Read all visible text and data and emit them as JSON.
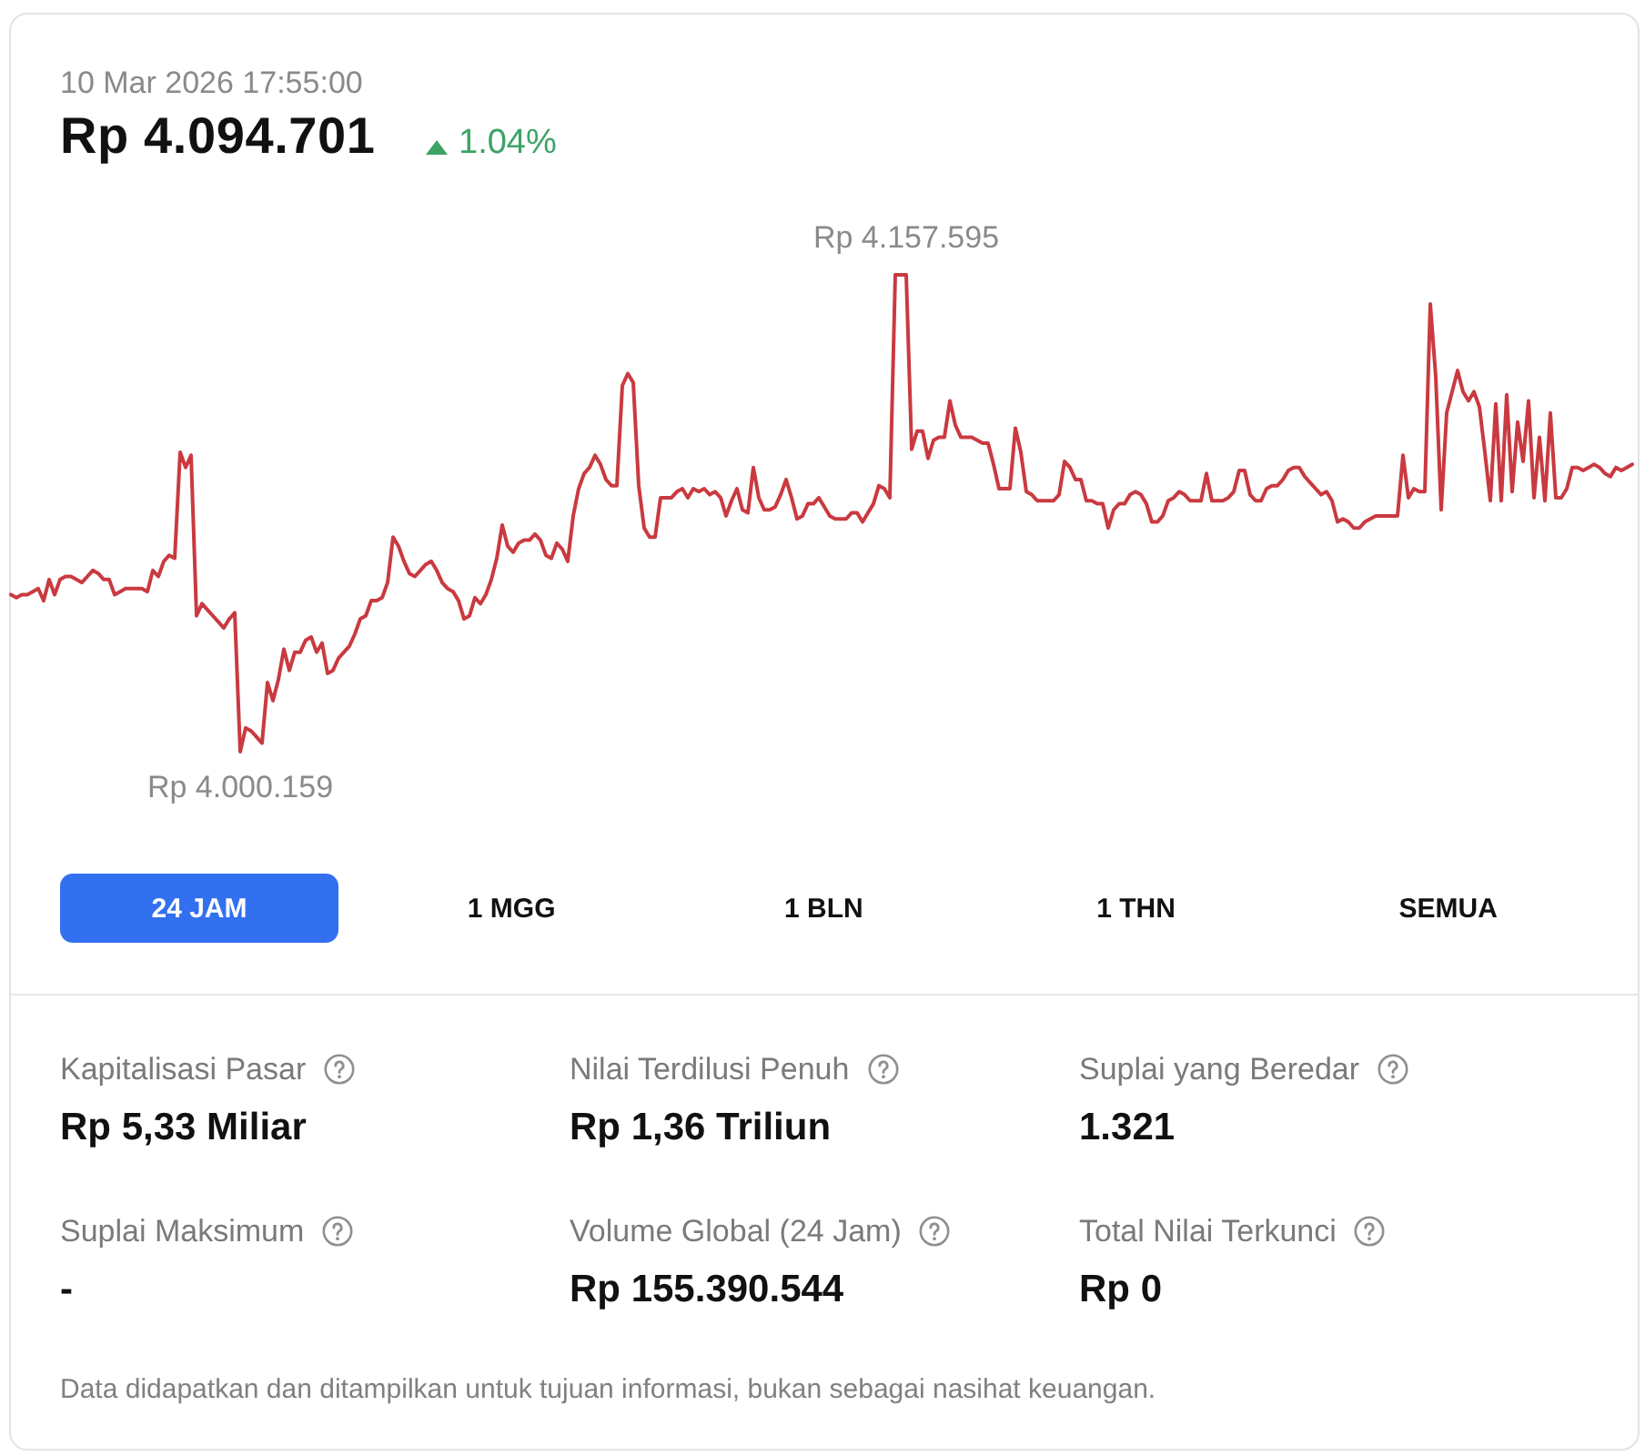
{
  "chart_data": [
    {
      "type": "line",
      "subtitle": "10 Mar 2026 17:55:00",
      "title": "Rp 4.094.701",
      "annotations": [
        "1.04%",
        "24 JAM",
        "1 MGG",
        "1 BLN",
        "1 THN",
        "SEMUA"
      ],
      "categories": [
        null,
        null,
        null,
        null,
        null,
        null,
        null,
        null,
        null,
        null,
        null,
        null,
        null,
        null,
        null,
        null,
        null,
        null,
        null,
        null,
        null,
        null,
        null,
        null,
        null,
        null,
        null,
        null,
        null,
        null,
        null,
        null,
        null,
        null,
        null,
        null,
        null,
        null,
        null,
        null,
        null,
        null,
        null,
        null,
        null,
        null,
        null,
        null,
        null,
        null,
        null,
        null,
        null,
        null,
        null,
        null,
        null,
        null,
        null,
        null,
        null,
        null,
        null,
        null,
        null,
        null,
        null,
        null,
        null,
        null,
        null,
        null,
        null,
        null,
        null,
        null,
        null,
        null,
        null,
        null,
        null,
        null,
        null,
        null,
        null,
        null,
        null,
        null,
        null,
        null,
        null,
        null,
        null,
        null,
        null,
        null,
        null,
        null,
        null,
        null,
        null,
        null,
        null,
        null,
        null,
        null,
        null,
        null,
        null,
        null,
        null,
        null,
        null,
        null,
        null,
        null,
        null,
        null,
        null,
        null,
        null,
        null,
        null,
        null,
        null,
        null,
        null,
        null,
        null,
        null,
        null,
        null,
        null,
        null,
        null,
        null,
        null,
        null,
        null,
        null,
        null,
        null,
        null,
        null,
        null,
        null,
        null,
        null,
        null,
        null,
        null,
        null,
        null,
        null,
        null,
        null,
        null,
        null,
        null,
        null,
        null,
        null,
        null,
        null,
        null,
        null,
        null,
        null,
        null,
        null,
        null,
        null,
        null,
        null,
        null,
        null,
        null,
        null,
        null,
        null,
        null,
        null,
        null,
        null,
        null,
        null,
        null,
        null,
        null,
        null,
        null,
        null,
        null,
        null,
        null,
        null,
        null,
        null,
        null,
        null,
        null,
        null,
        null,
        null,
        null,
        null,
        null,
        null,
        null,
        null,
        null,
        null,
        null,
        null,
        null,
        null,
        null,
        null,
        null,
        null,
        null,
        null,
        null,
        null,
        null,
        null,
        null,
        null,
        null,
        null,
        null,
        null,
        null,
        null,
        null,
        null,
        null,
        null,
        null,
        null,
        null,
        null,
        null,
        null,
        null,
        null,
        null,
        null,
        null,
        null,
        null,
        null,
        null,
        null,
        null,
        null,
        null,
        null,
        null,
        null,
        null,
        null,
        null,
        null,
        null,
        null,
        null,
        null,
        null,
        null,
        null,
        null,
        null,
        null,
        null,
        null,
        null,
        null,
        null,
        null,
        null,
        null,
        null,
        null,
        null,
        null,
        null,
        null,
        null,
        null,
        null,
        null,
        null,
        null,
        null,
        null,
        null,
        null
      ],
      "values": [
        4052000,
        4051000,
        4052000,
        4052000,
        4053000,
        4054000,
        4050000,
        4057000,
        4052000,
        4057000,
        4058000,
        4058000,
        4057000,
        4056000,
        4058000,
        4060000,
        4059000,
        4057000,
        4057000,
        4052000,
        4053000,
        4054000,
        4054000,
        4054000,
        4054000,
        4053000,
        4060000,
        4058000,
        4063000,
        4065000,
        4064000,
        4099000,
        4094000,
        4098000,
        4045000,
        4049000,
        4047000,
        4045000,
        4043000,
        4041000,
        4044000,
        4046000,
        4000159,
        4008000,
        4007000,
        4005000,
        4003000,
        4023000,
        4017000,
        4024000,
        4034000,
        4027000,
        4033000,
        4033000,
        4037000,
        4038000,
        4033000,
        4036000,
        4026000,
        4027000,
        4031000,
        4033000,
        4035000,
        4039000,
        4044000,
        4045000,
        4050000,
        4050000,
        4051000,
        4056000,
        4071000,
        4068000,
        4063000,
        4059000,
        4058000,
        4060000,
        4062000,
        4063000,
        4060000,
        4056000,
        4054000,
        4053000,
        4050000,
        4044000,
        4045000,
        4051000,
        4049000,
        4052000,
        4057000,
        4064000,
        4075000,
        4068000,
        4066000,
        4069000,
        4070000,
        4070000,
        4072000,
        4070000,
        4065000,
        4064000,
        4069000,
        4067000,
        4063000,
        4078000,
        4087000,
        4092000,
        4094000,
        4098000,
        4095000,
        4090000,
        4088000,
        4088000,
        4121000,
        4125000,
        4122000,
        4088000,
        4074000,
        4071000,
        4071000,
        4084000,
        4084000,
        4084000,
        4086000,
        4087000,
        4084000,
        4087000,
        4086000,
        4087000,
        4085000,
        4086000,
        4084000,
        4078000,
        4083000,
        4087000,
        4080000,
        4079000,
        4094000,
        4084000,
        4080000,
        4080000,
        4081000,
        4085000,
        4090000,
        4084000,
        4077000,
        4078000,
        4082000,
        4082000,
        4084000,
        4081000,
        4078000,
        4077000,
        4077000,
        4077000,
        4079000,
        4079000,
        4076000,
        4079000,
        4082000,
        4088000,
        4087000,
        4084000,
        4157595,
        4157595,
        4157595,
        4100000,
        4106000,
        4106000,
        4097000,
        4103000,
        4104000,
        4104000,
        4116000,
        4108000,
        4104000,
        4104000,
        4104000,
        4103000,
        4102000,
        4102000,
        4095000,
        4087000,
        4087000,
        4087000,
        4107000,
        4099000,
        4086000,
        4085000,
        4083000,
        4083000,
        4083000,
        4083000,
        4085000,
        4096000,
        4094000,
        4090000,
        4090000,
        4083000,
        4083000,
        4082000,
        4082000,
        4074000,
        4080000,
        4082000,
        4082000,
        4085000,
        4086000,
        4085000,
        4082000,
        4076000,
        4076000,
        4078000,
        4083000,
        4084000,
        4086000,
        4085000,
        4083000,
        4083000,
        4083000,
        4092000,
        4083000,
        4083000,
        4083000,
        4084000,
        4086000,
        4093000,
        4093000,
        4085000,
        4083000,
        4083000,
        4087000,
        4088000,
        4088000,
        4090000,
        4093000,
        4094000,
        4094000,
        4091000,
        4089000,
        4087000,
        4085000,
        4086000,
        4083000,
        4076000,
        4077000,
        4076000,
        4074000,
        4074000,
        4076000,
        4077000,
        4078000,
        4078000,
        4078000,
        4078000,
        4078000,
        4098000,
        4084000,
        4087000,
        4086000,
        4086000,
        4148000,
        4124000,
        4080000,
        4112000,
        4119000,
        4126000,
        4119000,
        4116000,
        4119000,
        4114000,
        4099000,
        4083000,
        4115000,
        4083000,
        4118000,
        4086000,
        4109000,
        4096000,
        4116000,
        4084000,
        4104000,
        4083000,
        4112000,
        4084000,
        4084000,
        4087000,
        4094000,
        4094000,
        4093000,
        4094000,
        4095000,
        4094000,
        4092000,
        4091000,
        4094000,
        4093000,
        4094000,
        4095000
      ],
      "value_labels": [
        null,
        null,
        null,
        null,
        null,
        null,
        null,
        null,
        null,
        null,
        null,
        null,
        null,
        null,
        null,
        null,
        null,
        null,
        null,
        null,
        null,
        null,
        null,
        null,
        null,
        null,
        null,
        null,
        null,
        null,
        null,
        null,
        null,
        null,
        null,
        null,
        null,
        null,
        null,
        null,
        null,
        null,
        "Rp 4.000.159",
        null,
        null,
        null,
        null,
        null,
        null,
        null,
        null,
        null,
        null,
        null,
        null,
        null,
        null,
        null,
        null,
        null,
        null,
        null,
        null,
        null,
        null,
        null,
        null,
        null,
        null,
        null,
        null,
        null,
        null,
        null,
        null,
        null,
        null,
        null,
        null,
        null,
        null,
        null,
        null,
        null,
        null,
        null,
        null,
        null,
        null,
        null,
        null,
        null,
        null,
        null,
        null,
        null,
        null,
        null,
        null,
        null,
        null,
        null,
        null,
        null,
        null,
        null,
        null,
        null,
        null,
        null,
        null,
        null,
        null,
        null,
        null,
        null,
        null,
        null,
        null,
        null,
        null,
        null,
        null,
        null,
        null,
        null,
        null,
        null,
        null,
        null,
        null,
        null,
        null,
        null,
        null,
        null,
        null,
        null,
        null,
        null,
        null,
        null,
        null,
        null,
        null,
        null,
        null,
        null,
        null,
        null,
        null,
        null,
        null,
        null,
        null,
        null,
        null,
        null,
        null,
        null,
        null,
        null,
        null,
        null,
        "Rp 4.157.595",
        null,
        null,
        null,
        null,
        null,
        null,
        null,
        null,
        null,
        null,
        null,
        null,
        null,
        null,
        null,
        null,
        null,
        null,
        null,
        null,
        null,
        null,
        null,
        null,
        null,
        null,
        null,
        null,
        null,
        null,
        null,
        null,
        null,
        null,
        null,
        null,
        null,
        null,
        null,
        null,
        null,
        null,
        null,
        null,
        null,
        null,
        null,
        null,
        null,
        null,
        null,
        null,
        null,
        null,
        null,
        null,
        null,
        null,
        null,
        null,
        null,
        null,
        null,
        null,
        null,
        null,
        null,
        null,
        null,
        null,
        null,
        null,
        null,
        null,
        null,
        null,
        null,
        null,
        null,
        null,
        null,
        null,
        null,
        null,
        null,
        null,
        null,
        null,
        null,
        null,
        null,
        null,
        null,
        null,
        null,
        null,
        null,
        null,
        null,
        null,
        null,
        null,
        null,
        null,
        null,
        null,
        null,
        null,
        null,
        null,
        null,
        null,
        null,
        null,
        null,
        null,
        null,
        null,
        null,
        null,
        null,
        null,
        null,
        null,
        null,
        null,
        null,
        null,
        null,
        null,
        null,
        null,
        null
      ],
      "color": "#c93a40",
      "tick_labels": false,
      "marker": "none"
    },
    {
      "type": "other",
      "annotations": [
        "Kapitalisasi Pasar",
        "Rp 5,33 Miliar",
        "Nilai Terdilusi Penuh",
        "Rp 1,36 Triliun",
        "Suplai yang Beredar",
        "1.321",
        "Suplai Maksimum",
        "-",
        "Volume Global (24 Jam)",
        "Rp 155.390.544",
        "Total Nilai Terkunci",
        "Rp 0",
        "Data didapatkan dan ditampilkan untuk tujuan informasi, bukan sebagai nasihat keuangan."
      ]
    }
  ]
}
